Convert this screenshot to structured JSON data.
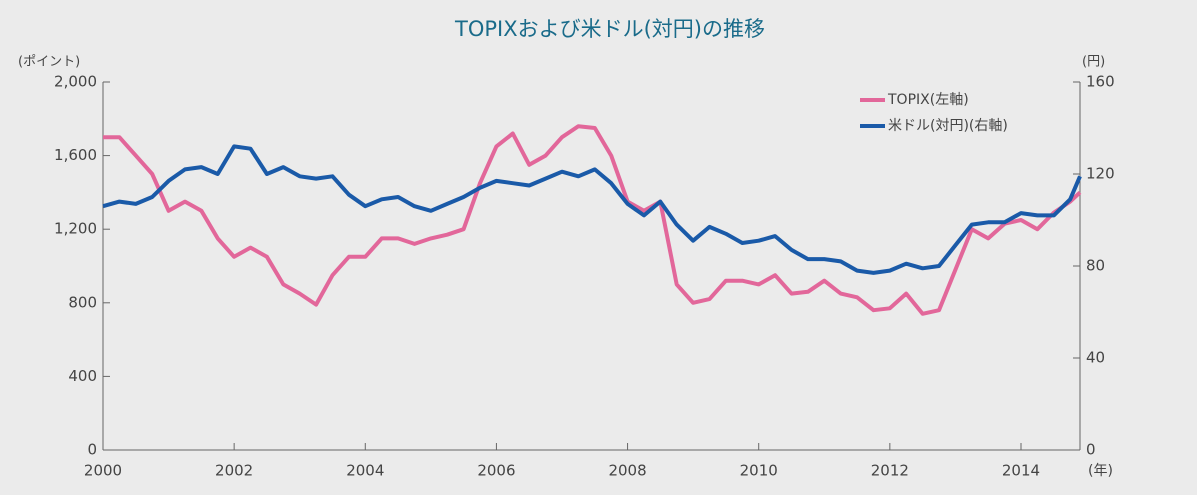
{
  "chart_data": {
    "type": "line",
    "title": "TOPIXおよび米ドル(対円)の推移",
    "y_label": "(ポイント)",
    "y2_label": "(円)",
    "x_label": "(年)",
    "x": [
      2000,
      2000.25,
      2000.5,
      2000.75,
      2001,
      2001.25,
      2001.5,
      2001.75,
      2002,
      2002.25,
      2002.5,
      2002.75,
      2003,
      2003.25,
      2003.5,
      2003.75,
      2004,
      2004.25,
      2004.5,
      2004.75,
      2005,
      2005.25,
      2005.5,
      2005.75,
      2006,
      2006.25,
      2006.5,
      2006.75,
      2007,
      2007.25,
      2007.5,
      2007.75,
      2008,
      2008.25,
      2008.5,
      2008.75,
      2009,
      2009.25,
      2009.5,
      2009.75,
      2010,
      2010.25,
      2010.5,
      2010.75,
      2011,
      2011.25,
      2011.5,
      2011.75,
      2012,
      2012.25,
      2012.5,
      2012.75,
      2013,
      2013.25,
      2013.5,
      2013.75,
      2014,
      2014.25,
      2014.5,
      2014.75,
      2014.9
    ],
    "series": [
      {
        "name": "TOPIX(左軸)",
        "color": "#e2679a",
        "axis": "y",
        "values": [
          1700,
          1700,
          1600,
          1500,
          1300,
          1350,
          1300,
          1150,
          1050,
          1100,
          1050,
          900,
          850,
          790,
          950,
          1050,
          1050,
          1150,
          1150,
          1120,
          1150,
          1170,
          1200,
          1450,
          1650,
          1720,
          1550,
          1600,
          1700,
          1760,
          1750,
          1600,
          1350,
          1300,
          1350,
          900,
          800,
          820,
          920,
          920,
          900,
          950,
          850,
          860,
          920,
          850,
          830,
          760,
          770,
          850,
          740,
          760,
          980,
          1200,
          1150,
          1230,
          1250,
          1200,
          1290,
          1350,
          1400
        ]
      },
      {
        "name": "米ドル(対円)(右軸)",
        "color": "#1a5aa8",
        "axis": "y2",
        "values": [
          106,
          108,
          107,
          110,
          117,
          122,
          123,
          120,
          132,
          131,
          120,
          123,
          119,
          118,
          119,
          111,
          106,
          109,
          110,
          106,
          104,
          107,
          110,
          114,
          117,
          116,
          115,
          118,
          121,
          119,
          122,
          116,
          107,
          102,
          108,
          98,
          91,
          97,
          94,
          90,
          91,
          93,
          87,
          83,
          83,
          82,
          78,
          77,
          78,
          81,
          79,
          80,
          89,
          98,
          99,
          99,
          103,
          102,
          102,
          109,
          119
        ]
      }
    ],
    "xlim": [
      2000,
      2014.9
    ],
    "xticks": [
      2000,
      2002,
      2004,
      2006,
      2008,
      2010,
      2012,
      2014
    ],
    "ylim": [
      0,
      2000
    ],
    "yticks": [
      0,
      400,
      800,
      {
        "value": 1200,
        "label": "1,200"
      },
      {
        "value": 1600,
        "label": "1,600"
      },
      {
        "value": 2000,
        "label": "2,000"
      }
    ],
    "y2lim": [
      0,
      160
    ],
    "y2ticks": [
      0,
      40,
      80,
      120,
      160
    ],
    "grid": false,
    "legend": "upper right"
  }
}
